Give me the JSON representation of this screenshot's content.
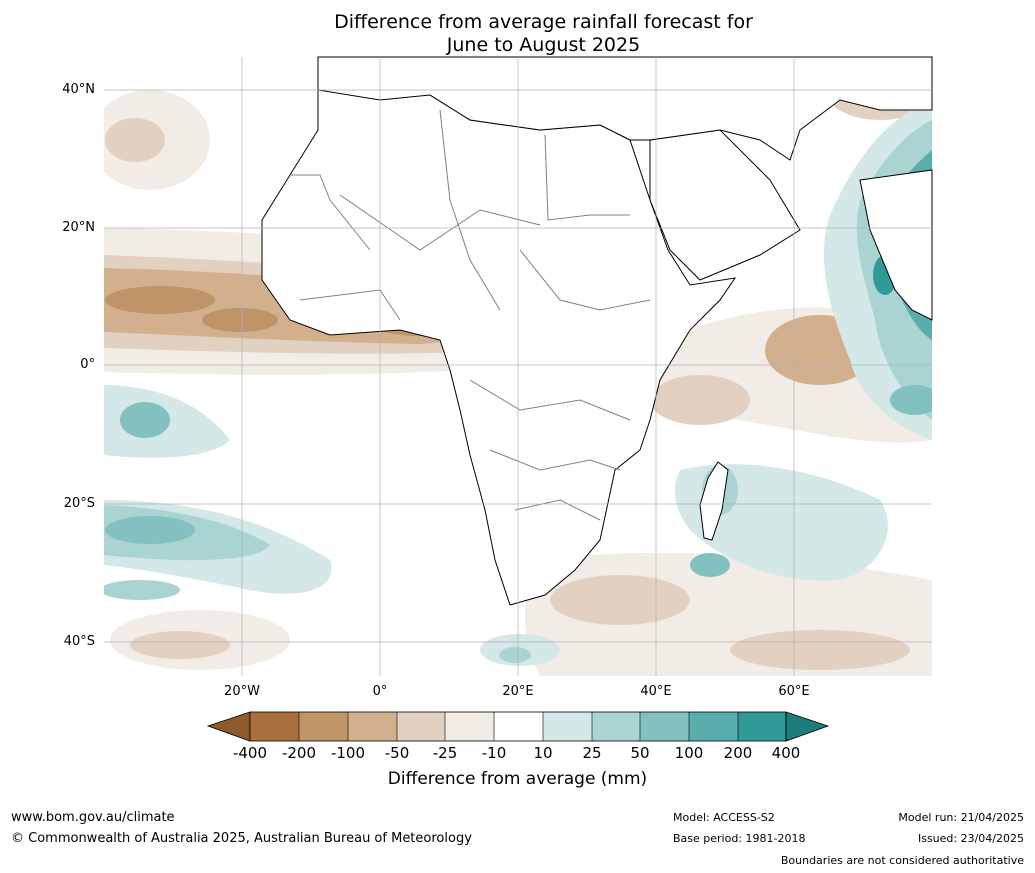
{
  "title_line1": "Difference from average rainfall forecast for",
  "title_line2": "June to August 2025",
  "lat_labels": [
    "40°N",
    "20°N",
    "0°",
    "20°S",
    "40°S"
  ],
  "lon_labels": [
    "20°W",
    "0°",
    "20°E",
    "40°E",
    "60°E"
  ],
  "colorbar": {
    "title": "Difference from average (mm)",
    "tick_labels": [
      "-400",
      "-200",
      "-100",
      "-50",
      "-25",
      "-10",
      "10",
      "25",
      "50",
      "100",
      "200",
      "400"
    ],
    "colors": [
      "#8c5a2b",
      "#a9703d",
      "#c09469",
      "#d2b08e",
      "#e2d1c0",
      "#f1ece6",
      "#ffffff",
      "#d3e8e7",
      "#a9d4d2",
      "#82c1c0",
      "#5aadad",
      "#2f9a98",
      "#1c7d7c"
    ]
  },
  "footer": {
    "url": "www.bom.gov.au/climate",
    "copyright": "© Commonwealth of Australia 2025, Australian Bureau of Meteorology",
    "model": "Model: ACCESS-S2",
    "base_period": "Base period: 1981-2018",
    "model_run": "Model run: 21/04/2025",
    "issued": "Issued: 23/04/2025",
    "disclaimer": "Boundaries are not considered authoritative"
  }
}
